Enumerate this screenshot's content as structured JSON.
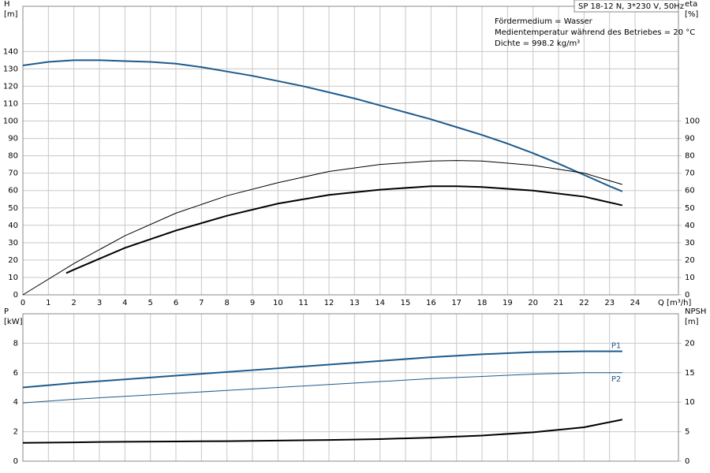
{
  "chart_data": [
    {
      "type": "line",
      "title": "SP 18-12 N, 3*230 V, 50Hz",
      "annotations": [
        "Fördermedium = Wasser",
        "Medientemperatur während des Betriebes = 20 °C",
        "Dichte = 998.2 kg/m³"
      ],
      "ylabel": [
        "H",
        "[m]"
      ],
      "y2label": [
        "eta",
        "[%]"
      ],
      "xlabel": "Q [m³/h]",
      "xlim": [
        0,
        25.7
      ],
      "xticks": [
        0,
        1,
        2,
        3,
        4,
        5,
        6,
        7,
        8,
        9,
        10,
        11,
        12,
        13,
        14,
        15,
        16,
        17,
        18,
        19,
        20,
        21,
        22,
        23,
        24
      ],
      "ylim": [
        0,
        166
      ],
      "yticks": [
        0,
        10,
        20,
        30,
        40,
        50,
        60,
        70,
        80,
        90,
        100,
        110,
        120,
        130,
        140
      ],
      "y2lim": [
        0,
        166
      ],
      "y2ticks": [
        0,
        10,
        20,
        30,
        40,
        50,
        60,
        70,
        80,
        90,
        100
      ],
      "grid": true,
      "series": [
        {
          "color": "#1d5a8c",
          "linewidth": 2,
          "axis": "y",
          "x": [
            0,
            1,
            2,
            3,
            4,
            5,
            6,
            7,
            8,
            9,
            10,
            11,
            12,
            13,
            14,
            15,
            16,
            17,
            18,
            19,
            20,
            21,
            22,
            23,
            23.5
          ],
          "values": [
            132,
            134,
            135,
            135,
            134.5,
            134,
            133,
            131,
            128.5,
            126,
            123,
            120,
            116.5,
            113,
            109,
            105,
            101,
            96.5,
            92,
            87,
            81.5,
            75.5,
            69,
            62.5,
            59.5
          ]
        },
        {
          "color": "#000000",
          "linewidth": 1,
          "axis": "y2",
          "x": [
            0,
            2,
            4,
            6,
            8,
            10,
            12,
            14,
            16,
            17,
            18,
            20,
            22,
            23.5
          ],
          "values": [
            0,
            18,
            34,
            47,
            57,
            64.5,
            71,
            75,
            77,
            77.3,
            77,
            74.5,
            70,
            63.5
          ]
        },
        {
          "color": "#000000",
          "linewidth": 2,
          "axis": "y2",
          "x": [
            1.7,
            2,
            4,
            6,
            8,
            10,
            12,
            14,
            16,
            17,
            18,
            20,
            22,
            23.5
          ],
          "values": [
            12.5,
            14.5,
            27,
            37,
            45.5,
            52.5,
            57.5,
            60.5,
            62.5,
            62.5,
            62,
            60,
            56.5,
            51.5
          ]
        }
      ]
    },
    {
      "type": "line",
      "ylabel": [
        "P",
        "[kW]"
      ],
      "y2label": [
        "NPSH",
        "[m]"
      ],
      "xlim": [
        0,
        25.7
      ],
      "xgrid": [
        0,
        1,
        2,
        3,
        4,
        5,
        6,
        7,
        8,
        9,
        10,
        11,
        12,
        13,
        14,
        15,
        16,
        17,
        18,
        19,
        20,
        21,
        22,
        23,
        24
      ],
      "ylim": [
        0,
        10
      ],
      "yticks": [
        0,
        2,
        4,
        6,
        8
      ],
      "y2lim": [
        0,
        25
      ],
      "y2ticks": [
        0,
        5,
        10,
        15,
        20
      ],
      "grid": true,
      "series": [
        {
          "name": "P1",
          "color": "#1d5a8c",
          "linewidth": 2,
          "axis": "y",
          "x": [
            0,
            2,
            4,
            6,
            8,
            10,
            12,
            14,
            16,
            18,
            20,
            22,
            23.5
          ],
          "values": [
            5.0,
            5.3,
            5.55,
            5.8,
            6.05,
            6.3,
            6.55,
            6.8,
            7.05,
            7.25,
            7.4,
            7.45,
            7.45
          ]
        },
        {
          "name": "P2",
          "color": "#1d5a8c",
          "linewidth": 1,
          "axis": "y",
          "x": [
            0,
            2,
            4,
            6,
            8,
            10,
            12,
            14,
            16,
            18,
            20,
            22,
            23.5
          ],
          "values": [
            3.95,
            4.2,
            4.4,
            4.6,
            4.8,
            5.0,
            5.2,
            5.4,
            5.6,
            5.75,
            5.9,
            6.0,
            6.0
          ]
        },
        {
          "color": "#000000",
          "linewidth": 2,
          "axis": "y2",
          "x": [
            0,
            2,
            4,
            6,
            8,
            10,
            12,
            14,
            16,
            18,
            20,
            22,
            23.5
          ],
          "values": [
            3.1,
            3.2,
            3.3,
            3.35,
            3.4,
            3.5,
            3.6,
            3.75,
            4.0,
            4.35,
            4.9,
            5.75,
            7.05
          ]
        }
      ]
    }
  ]
}
